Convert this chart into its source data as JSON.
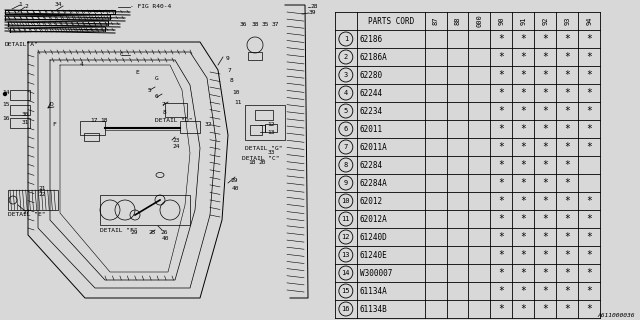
{
  "bg_color": "#d8d8d8",
  "col_header_rotated": [
    "87",
    "88",
    "000",
    "90",
    "91",
    "92",
    "93",
    "94"
  ],
  "parts": [
    {
      "num": 1,
      "code": "62186",
      "stars": [
        false,
        false,
        false,
        true,
        true,
        true,
        true,
        true
      ]
    },
    {
      "num": 2,
      "code": "62186A",
      "stars": [
        false,
        false,
        false,
        true,
        true,
        true,
        true,
        true
      ]
    },
    {
      "num": 3,
      "code": "62280",
      "stars": [
        false,
        false,
        false,
        true,
        true,
        true,
        true,
        true
      ]
    },
    {
      "num": 4,
      "code": "62244",
      "stars": [
        false,
        false,
        false,
        true,
        true,
        true,
        true,
        true
      ]
    },
    {
      "num": 5,
      "code": "62234",
      "stars": [
        false,
        false,
        false,
        true,
        true,
        true,
        true,
        true
      ]
    },
    {
      "num": 6,
      "code": "62011",
      "stars": [
        false,
        false,
        false,
        true,
        true,
        true,
        true,
        true
      ]
    },
    {
      "num": 7,
      "code": "62011A",
      "stars": [
        false,
        false,
        false,
        true,
        true,
        true,
        true,
        true
      ]
    },
    {
      "num": 8,
      "code": "62284",
      "stars": [
        false,
        false,
        false,
        true,
        true,
        true,
        true,
        false
      ]
    },
    {
      "num": 9,
      "code": "62284A",
      "stars": [
        false,
        false,
        false,
        true,
        true,
        true,
        true,
        false
      ]
    },
    {
      "num": 10,
      "code": "62012",
      "stars": [
        false,
        false,
        false,
        true,
        true,
        true,
        true,
        true
      ]
    },
    {
      "num": 11,
      "code": "62012A",
      "stars": [
        false,
        false,
        false,
        true,
        true,
        true,
        true,
        true
      ]
    },
    {
      "num": 12,
      "code": "61240D",
      "stars": [
        false,
        false,
        false,
        true,
        true,
        true,
        true,
        true
      ]
    },
    {
      "num": 13,
      "code": "61240E",
      "stars": [
        false,
        false,
        false,
        true,
        true,
        true,
        true,
        true
      ]
    },
    {
      "num": 14,
      "code": "W300007",
      "stars": [
        false,
        false,
        false,
        true,
        true,
        true,
        true,
        true
      ]
    },
    {
      "num": 15,
      "code": "61134A",
      "stars": [
        false,
        false,
        false,
        true,
        true,
        true,
        true,
        true
      ]
    },
    {
      "num": 16,
      "code": "61134B",
      "stars": [
        false,
        false,
        false,
        true,
        true,
        true,
        true,
        true
      ]
    }
  ],
  "watermark": "A611000036"
}
